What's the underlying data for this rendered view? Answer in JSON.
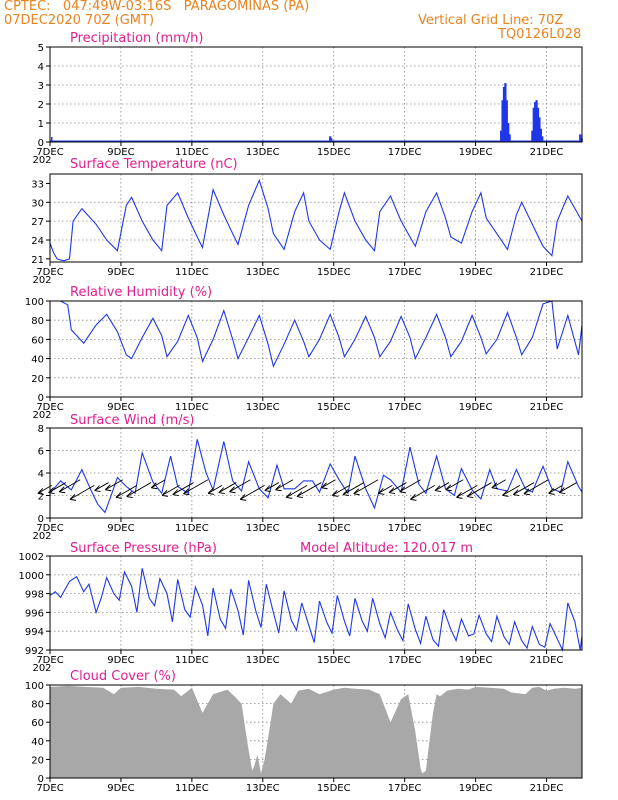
{
  "header": {
    "line1": "CPTEC:   047:49W-03:16S   PARAGOMINAS (PA)",
    "line2": "07DEC2020 70Z (GMT)",
    "grid_note": "Vertical Grid Line: 70Z",
    "code": "TQ0126L028"
  },
  "x_axis": {
    "ticks": [
      {
        "day": 7,
        "label": "7DEC"
      },
      {
        "day": 9,
        "label": "9DEC"
      },
      {
        "day": 11,
        "label": "11DEC"
      },
      {
        "day": 13,
        "label": "13DEC"
      },
      {
        "day": 15,
        "label": "15DEC"
      },
      {
        "day": 17,
        "label": "17DEC"
      },
      {
        "day": 19,
        "label": "19DEC"
      },
      {
        "day": 21,
        "label": "21DEC"
      }
    ],
    "year_stub": "202"
  },
  "colors": {
    "series": "#1f37e8",
    "cloud": "#a8a8a8",
    "title": "#e0208f",
    "header": "#e8831f"
  },
  "chart_data": [
    {
      "id": "precip",
      "type": "bar",
      "title": "Precipitation (mm/h)",
      "ylim": [
        0,
        5
      ],
      "yticks": [
        0,
        1,
        2,
        3,
        4,
        5
      ],
      "x": [
        14.9,
        14.93,
        19.72,
        19.76,
        19.8,
        19.84,
        19.88,
        19.92,
        19.96,
        20.6,
        20.64,
        20.68,
        20.72,
        20.76,
        20.8,
        20.84,
        20.88,
        21.95,
        21.99
      ],
      "values": [
        0.3,
        0.2,
        0.6,
        2.2,
        2.9,
        3.1,
        2.2,
        1.0,
        0.4,
        0.6,
        1.8,
        2.1,
        2.2,
        1.8,
        1.3,
        0.7,
        0.3,
        0.4,
        0.2
      ],
      "grid": true
    },
    {
      "id": "temp",
      "type": "line",
      "title": "Surface Temperature (nC)",
      "ylim": [
        20.5,
        34.5
      ],
      "yticks": [
        21,
        24,
        27,
        30,
        33
      ],
      "x": [
        7.0,
        7.1,
        7.2,
        7.3,
        7.4,
        7.55,
        7.65,
        7.9,
        8.3,
        8.6,
        8.9,
        9.15,
        9.3,
        9.6,
        9.9,
        10.15,
        10.3,
        10.6,
        10.9,
        11.15,
        11.3,
        11.6,
        11.9,
        12.15,
        12.3,
        12.6,
        12.9,
        13.15,
        13.3,
        13.6,
        13.9,
        14.15,
        14.3,
        14.6,
        14.9,
        15.15,
        15.3,
        15.6,
        15.9,
        16.15,
        16.3,
        16.6,
        16.9,
        17.15,
        17.3,
        17.6,
        17.9,
        18.15,
        18.3,
        18.6,
        18.9,
        19.15,
        19.3,
        19.6,
        19.9,
        20.15,
        20.3,
        20.6,
        20.9,
        21.15,
        21.3,
        21.6,
        21.9,
        22.0
      ],
      "values": [
        23.5,
        22,
        21,
        20.8,
        20.7,
        21,
        27,
        29,
        26.5,
        24,
        22.3,
        29.5,
        30.8,
        27,
        24,
        22.3,
        29.5,
        31.5,
        27.5,
        24.5,
        22.8,
        32,
        28,
        25,
        23.3,
        29.5,
        33.5,
        29,
        25,
        22.5,
        28.5,
        31.5,
        27,
        24,
        22.5,
        28.5,
        31.5,
        27,
        24,
        22.3,
        28.5,
        31,
        27,
        24.5,
        23,
        28.5,
        31.5,
        27.5,
        24.5,
        23.5,
        28.5,
        31.5,
        27.5,
        25,
        22.5,
        28,
        30,
        26.5,
        23,
        21.5,
        27,
        31,
        28,
        27
      ],
      "grid": true
    },
    {
      "id": "rh",
      "type": "line",
      "title": "Relative Humidity (%)",
      "ylim": [
        0,
        100
      ],
      "yticks": [
        0,
        20,
        40,
        60,
        80,
        100
      ],
      "x": [
        7.0,
        7.3,
        7.5,
        7.6,
        7.95,
        8.3,
        8.6,
        8.9,
        9.15,
        9.3,
        9.6,
        9.9,
        10.15,
        10.3,
        10.6,
        10.9,
        11.15,
        11.3,
        11.6,
        11.9,
        12.15,
        12.3,
        12.6,
        12.9,
        13.15,
        13.3,
        13.6,
        13.9,
        14.15,
        14.3,
        14.6,
        14.9,
        15.15,
        15.3,
        15.6,
        15.9,
        16.15,
        16.3,
        16.6,
        16.9,
        17.15,
        17.3,
        17.6,
        17.9,
        18.15,
        18.3,
        18.6,
        18.9,
        19.15,
        19.3,
        19.6,
        19.9,
        20.15,
        20.3,
        20.6,
        20.9,
        21.15,
        21.3,
        21.6,
        21.9,
        22.0
      ],
      "values": [
        100,
        100,
        96,
        70,
        56,
        75,
        86,
        68,
        44,
        40,
        62,
        82,
        64,
        42,
        58,
        85,
        62,
        37,
        60,
        90,
        60,
        40,
        62,
        85,
        55,
        32,
        55,
        80,
        58,
        42,
        60,
        86,
        62,
        42,
        60,
        84,
        62,
        42,
        58,
        84,
        62,
        40,
        62,
        86,
        62,
        42,
        58,
        85,
        62,
        45,
        60,
        88,
        62,
        44,
        62,
        97,
        100,
        50,
        85,
        44,
        75
      ],
      "grid": true
    },
    {
      "id": "wind",
      "type": "line",
      "title": "Surface Wind (m/s)",
      "ylim": [
        0,
        8
      ],
      "yticks": [
        0,
        2,
        4,
        6,
        8
      ],
      "x": [
        7.0,
        7.3,
        7.6,
        7.9,
        8.15,
        8.35,
        8.55,
        8.7,
        8.9,
        9.15,
        9.4,
        9.6,
        9.9,
        10.15,
        10.4,
        10.6,
        10.9,
        11.15,
        11.4,
        11.6,
        11.9,
        12.15,
        12.4,
        12.6,
        12.9,
        13.15,
        13.4,
        13.6,
        13.9,
        14.15,
        14.4,
        14.6,
        14.9,
        15.15,
        15.4,
        15.6,
        15.9,
        16.15,
        16.4,
        16.6,
        16.9,
        17.15,
        17.4,
        17.6,
        17.9,
        18.15,
        18.4,
        18.6,
        18.9,
        19.15,
        19.4,
        19.6,
        19.9,
        20.15,
        20.4,
        20.6,
        20.9,
        21.15,
        21.4,
        21.6,
        21.9,
        22.0
      ],
      "values": [
        2.2,
        3.3,
        2.5,
        4.3,
        2.5,
        1.2,
        0.5,
        1.8,
        3.6,
        2.8,
        2.2,
        5.8,
        3.2,
        2.2,
        5.5,
        2.8,
        2.2,
        7.0,
        4.0,
        2.5,
        6.8,
        3.3,
        2.4,
        5.0,
        2.6,
        1.8,
        4.7,
        2.6,
        2.6,
        3.3,
        3.3,
        2.3,
        4.8,
        3.4,
        2.2,
        5.5,
        2.6,
        0.9,
        3.8,
        3.4,
        2.3,
        6.3,
        3.0,
        2.2,
        5.5,
        2.6,
        2.0,
        4.4,
        2.5,
        1.7,
        4.3,
        2.6,
        2.4,
        4.3,
        2.6,
        2.3,
        4.6,
        2.6,
        2.3,
        5.0,
        2.8,
        2.3
      ],
      "arrows": [
        7.05,
        7.45,
        7.85,
        8.25,
        8.65,
        9.05,
        9.45,
        9.85,
        10.25,
        10.65,
        11.05,
        11.45,
        11.85,
        12.25,
        12.65,
        13.05,
        13.45,
        13.85,
        14.25,
        14.65,
        15.05,
        15.45,
        15.85,
        16.25,
        16.65,
        17.05,
        17.45,
        17.85,
        18.25,
        18.65,
        19.05,
        19.45,
        19.85,
        20.25,
        20.65,
        21.05,
        21.45,
        21.85
      ],
      "grid": true
    },
    {
      "id": "pressure",
      "type": "line",
      "title": "Surface Pressure (hPa)",
      "subtitle": "Model Altitude: 120.017 m",
      "ylim": [
        992,
        1002
      ],
      "yticks": [
        992,
        994,
        996,
        998,
        1000,
        1002
      ],
      "x": [
        7.0,
        7.15,
        7.3,
        7.55,
        7.75,
        7.95,
        8.1,
        8.3,
        8.45,
        8.6,
        8.8,
        8.95,
        9.1,
        9.3,
        9.45,
        9.6,
        9.8,
        9.95,
        10.1,
        10.3,
        10.45,
        10.6,
        10.8,
        10.95,
        11.1,
        11.3,
        11.45,
        11.6,
        11.8,
        11.95,
        12.1,
        12.3,
        12.45,
        12.6,
        12.8,
        12.95,
        13.1,
        13.3,
        13.45,
        13.6,
        13.8,
        13.95,
        14.1,
        14.3,
        14.45,
        14.6,
        14.8,
        14.95,
        15.1,
        15.3,
        15.45,
        15.6,
        15.8,
        15.95,
        16.1,
        16.3,
        16.45,
        16.6,
        16.8,
        16.95,
        17.1,
        17.3,
        17.45,
        17.6,
        17.8,
        17.95,
        18.1,
        18.3,
        18.45,
        18.6,
        18.8,
        18.95,
        19.1,
        19.3,
        19.45,
        19.6,
        19.8,
        19.95,
        20.1,
        20.3,
        20.45,
        20.6,
        20.8,
        20.95,
        21.1,
        21.3,
        21.45,
        21.6,
        21.8,
        21.95,
        22.0
      ],
      "values": [
        997.8,
        998.2,
        997.6,
        999.3,
        999.8,
        998.2,
        999.0,
        996.0,
        997.6,
        999.7,
        998.0,
        997.3,
        1000.3,
        998.8,
        996.0,
        1000.7,
        997.5,
        996.7,
        999.6,
        998.0,
        995.0,
        999.5,
        996.3,
        995.5,
        998.7,
        996.8,
        993.5,
        998.6,
        995.3,
        994.3,
        998.5,
        996.2,
        993.6,
        999.4,
        996.2,
        994.4,
        999.0,
        996.0,
        993.8,
        998.3,
        995.2,
        994.1,
        997.0,
        994.6,
        992.8,
        997.2,
        995.0,
        993.8,
        997.8,
        995.1,
        993.5,
        997.5,
        995.1,
        994.0,
        997.5,
        994.8,
        993.3,
        996.0,
        994.1,
        993.0,
        996.9,
        994.2,
        992.7,
        995.6,
        993.1,
        992.4,
        996.3,
        994.2,
        993.0,
        995.3,
        993.5,
        993.7,
        995.7,
        993.7,
        992.9,
        995.6,
        993.4,
        992.6,
        995.0,
        993.0,
        992.2,
        994.5,
        992.6,
        992.3,
        994.8,
        993.2,
        992.0,
        997.0,
        995.0,
        992.0,
        993.5
      ],
      "grid": true
    },
    {
      "id": "cloud",
      "type": "area",
      "title": "Cloud Cover (%)",
      "ylim": [
        0,
        100
      ],
      "yticks": [
        0,
        20,
        40,
        60,
        80,
        100
      ],
      "x": [
        7.0,
        7.5,
        8.0,
        8.5,
        8.8,
        9.0,
        9.5,
        10.0,
        10.5,
        10.7,
        10.9,
        11.0,
        11.3,
        11.6,
        12.0,
        12.2,
        12.4,
        12.6,
        12.7,
        12.75,
        12.85,
        12.95,
        13.05,
        13.2,
        13.3,
        13.5,
        13.8,
        14.0,
        14.3,
        14.6,
        15.0,
        15.3,
        15.6,
        16.0,
        16.3,
        16.6,
        16.9,
        17.1,
        17.3,
        17.45,
        17.5,
        17.6,
        17.7,
        17.8,
        17.9,
        18.0,
        18.2,
        18.5,
        18.8,
        19.0,
        19.4,
        19.8,
        20.0,
        20.4,
        20.6,
        20.8,
        21.0,
        21.2,
        21.5,
        21.8,
        22.0
      ],
      "values": [
        98,
        99,
        98,
        97,
        90,
        97,
        98,
        96,
        95,
        88,
        94,
        97,
        70,
        90,
        95,
        88,
        80,
        30,
        8,
        12,
        25,
        5,
        20,
        55,
        80,
        90,
        80,
        94,
        96,
        90,
        95,
        97,
        96,
        95,
        90,
        60,
        85,
        90,
        50,
        10,
        5,
        8,
        40,
        70,
        90,
        88,
        94,
        96,
        95,
        98,
        97,
        96,
        92,
        90,
        97,
        98,
        94,
        96,
        97,
        96,
        97
      ],
      "grid": true
    }
  ]
}
